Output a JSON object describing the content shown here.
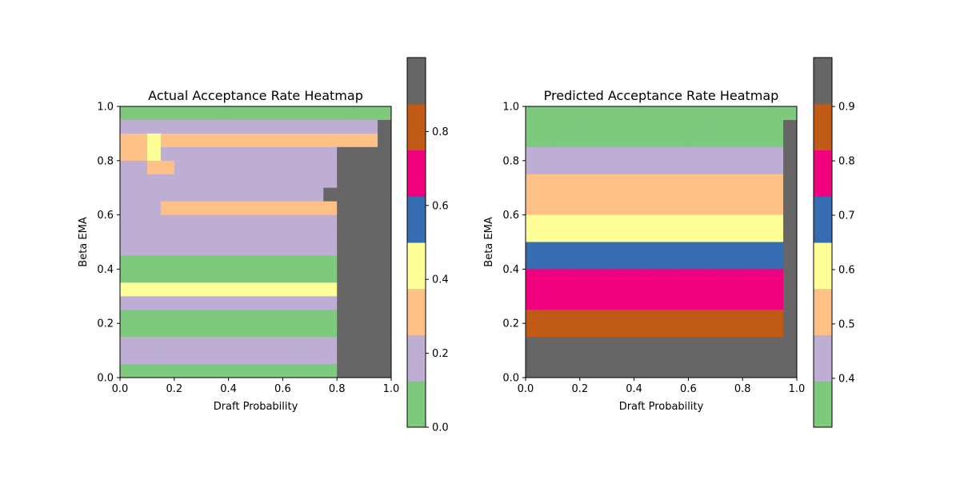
{
  "chart_data": [
    {
      "type": "heatmap",
      "title": "Actual Acceptance Rate Heatmap",
      "xlabel": "Draft Probability",
      "ylabel": "Beta EMA",
      "xlim": [
        0,
        1
      ],
      "ylim": [
        0,
        1
      ],
      "xticks": [
        "0.0",
        "0.2",
        "0.4",
        "0.6",
        "0.8",
        "1.0"
      ],
      "yticks": [
        "0.0",
        "0.2",
        "0.4",
        "0.6",
        "0.8",
        "1.0"
      ],
      "grid_size": [
        20,
        20
      ],
      "colormap": "Accent",
      "colorbar": {
        "min": 0.0,
        "max": 1.0,
        "ticks": [
          "0.0",
          "0.2",
          "0.4",
          "0.6",
          "0.8"
        ],
        "tick_values": [
          0.0,
          0.2,
          0.4,
          0.6,
          0.8
        ]
      },
      "rows_top_to_bottom": [
        "00000000000000000000",
        "4444444444444443333H",
        "6676666666666666666H",
        "5573333333333333HHHH",
        "4455444444444444HHHH",
        "4444444444444444HHHH",
        "333333333333333HHHHH",
        "4445555566666666HHHH",
        "3333333333333333HHHH",
        "4444444444444444HHHH",
        "4444444444444444HHHH",
        "2222222222222222HHHH",
        "1111111111111111HHHH",
        "7777777777777777HHHH",
        "3333333333333333HHHH",
        "0000000000000000HHHH",
        "0000000000000000HHHH",
        "4444444444444444HHHH",
        "3333333333333333HHHH",
        "1111111111111111HHHH"
      ]
    },
    {
      "type": "heatmap",
      "title": "Predicted Acceptance Rate Heatmap",
      "xlabel": "Draft Probability",
      "ylabel": "Beta EMA",
      "xlim": [
        0,
        1
      ],
      "ylim": [
        0,
        1
      ],
      "xticks": [
        "0.0",
        "0.2",
        "0.4",
        "0.6",
        "0.8",
        "1.0"
      ],
      "yticks": [
        "0.0",
        "0.2",
        "0.4",
        "0.6",
        "0.8",
        "1.0"
      ],
      "grid_size": [
        20,
        20
      ],
      "colormap": "Accent",
      "colorbar": {
        "min": 0.31,
        "max": 0.99,
        "ticks": [
          "0.4",
          "0.5",
          "0.6",
          "0.7",
          "0.8",
          "0.9"
        ],
        "tick_values": [
          0.4,
          0.5,
          0.6,
          0.7,
          0.8,
          0.9
        ]
      },
      "rows_top_to_bottom": [
        "00000000000000000000",
        "1111111111111111111H",
        "2222222222222222222H",
        "3333333333333333333H",
        "4444444444444444444H",
        "5555555555555555555H",
        "6666666666666666666H",
        "7777777777777777777H",
        "8888888888888888888H",
        "9999999999999999999H",
        "AAAAAAAAAAAAAAAAAAAH",
        "BBBBBBBBBBBBBBBBBBBH",
        "CCCCCCCCCCCCCCCCCCCH",
        "DDDDDDDDDDDDDDDDDDDH",
        "EEEEEEEEEEEEEEEEEEEH",
        "FFFFFFFFFFFFFFFFFFFH",
        "GGGGGGGGGGGGGGGGGGGH",
        "HHHHHHHHHHHHHHHHHHHH",
        "IIIIIIIIIIIIIIIIIIII",
        "JJJJJJJJJJJJJJJJJJJJ"
      ]
    }
  ]
}
